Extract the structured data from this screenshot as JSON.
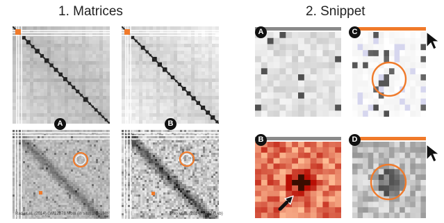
{
  "sections": {
    "matrices_title": "1. Matrices",
    "snippet_title": "2. Snippet"
  },
  "badges": {
    "a": "A",
    "b": "B",
    "c": "C",
    "d": "D"
  },
  "captions": {
    "left": "Rao et al. (2014) GM12878 Mbol (in situ) 1kb-1Mb",
    "right": "Rao et al. (2014) K562 (1kb)"
  },
  "colors": {
    "highlight": "#f07a2a",
    "snippet_b_dark": "#c42a05",
    "snippet_b_light": "#ffd8c2",
    "cursor": "#111111"
  }
}
